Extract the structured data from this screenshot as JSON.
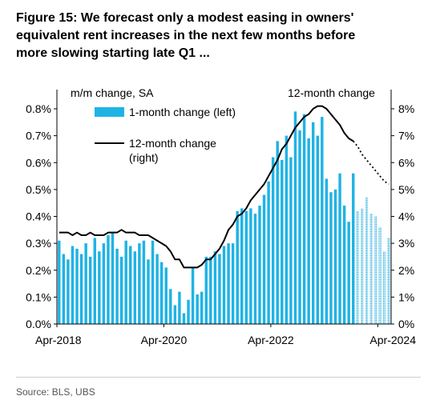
{
  "title_lines": [
    "Figure 15: We forecast only a modest easing in owners'",
    "equivalent rent increases in the next few months before",
    "more slowing starting late Q1 ..."
  ],
  "source": "Source: BLS, UBS",
  "chart_data": {
    "type": "bar",
    "left_axis_label": "m/m change, SA",
    "right_axis_label": "12-month change",
    "left_ylim": [
      0,
      0.8
    ],
    "left_ticks": [
      "0.0%",
      "0.1%",
      "0.2%",
      "0.3%",
      "0.4%",
      "0.5%",
      "0.6%",
      "0.7%",
      "0.8%"
    ],
    "right_ylim": [
      0,
      8
    ],
    "right_ticks": [
      "0%",
      "1%",
      "2%",
      "3%",
      "4%",
      "5%",
      "6%",
      "7%",
      "8%"
    ],
    "x_ticks": [
      {
        "index": 0,
        "label": "Apr-2018"
      },
      {
        "index": 24,
        "label": "Apr-2020"
      },
      {
        "index": 48,
        "label": "Apr-2022"
      },
      {
        "index": 72,
        "label": "Apr-2024"
      }
    ],
    "legend": [
      {
        "name": "1-month change (left)",
        "color": "#1fb3e5"
      },
      {
        "name": "12-month change",
        "name2": "(right)",
        "color": "#000000"
      }
    ],
    "start_month": "Apr-2018",
    "series": [
      {
        "name": "1-month change (left)",
        "axis": "left",
        "color": "#1fb3e5",
        "values": [
          0.31,
          0.26,
          0.24,
          0.29,
          0.28,
          0.26,
          0.3,
          0.25,
          0.32,
          0.27,
          0.3,
          0.33,
          0.34,
          0.28,
          0.25,
          0.31,
          0.29,
          0.27,
          0.3,
          0.31,
          0.24,
          0.31,
          0.26,
          0.23,
          0.21,
          0.13,
          0.07,
          0.12,
          0.04,
          0.09,
          0.21,
          0.11,
          0.12,
          0.25,
          0.25,
          0.27,
          0.26,
          0.29,
          0.3,
          0.3,
          0.42,
          0.43,
          0.42,
          0.43,
          0.41,
          0.44,
          0.48,
          0.53,
          0.62,
          0.68,
          0.61,
          0.7,
          0.62,
          0.79,
          0.72,
          0.78,
          0.69,
          0.75,
          0.7,
          0.77,
          0.54,
          0.49,
          0.5,
          0.56,
          0.44,
          0.38,
          0.56
        ]
      },
      {
        "name": "forecast",
        "axis": "left",
        "color": "#8fcde6",
        "values": [
          0.42,
          0.43,
          0.47,
          0.41,
          0.4,
          0.36,
          0.27,
          0.32
        ]
      },
      {
        "name": "12-month change",
        "axis": "right",
        "color": "#000000",
        "values": [
          3.4,
          3.4,
          3.4,
          3.3,
          3.4,
          3.3,
          3.3,
          3.4,
          3.3,
          3.3,
          3.3,
          3.4,
          3.4,
          3.4,
          3.5,
          3.4,
          3.4,
          3.4,
          3.3,
          3.3,
          3.3,
          3.2,
          3.1,
          3.0,
          2.9,
          2.7,
          2.4,
          2.4,
          2.1,
          2.1,
          2.1,
          2.1,
          2.2,
          2.4,
          2.4,
          2.6,
          2.8,
          3.1,
          3.5,
          3.7,
          4.0,
          4.1,
          4.3,
          4.6,
          4.8,
          5.0,
          5.2,
          5.5,
          5.8,
          6.1,
          6.5,
          6.7,
          7.0,
          7.3,
          7.5,
          7.7,
          7.8,
          8.0,
          8.1,
          8.1,
          8.0,
          7.8,
          7.6,
          7.4,
          7.1,
          6.9,
          6.8
        ]
      },
      {
        "name": "12-month change forecast",
        "axis": "right",
        "color": "#000000",
        "values": [
          6.8,
          6.6,
          6.3,
          6.1,
          5.9,
          5.7,
          5.5,
          5.3,
          5.2
        ]
      }
    ]
  }
}
